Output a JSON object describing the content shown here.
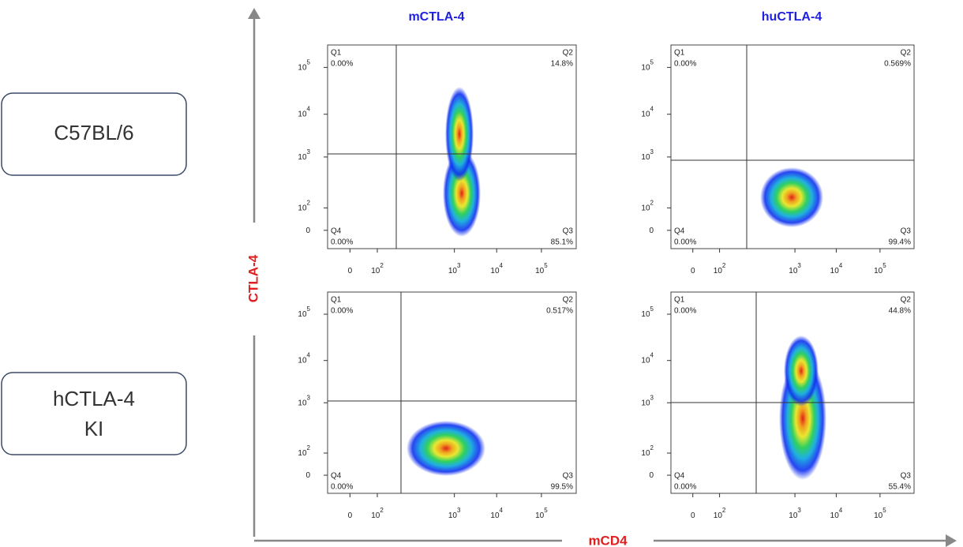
{
  "column_titles": [
    "mCTLA-4",
    "huCTLA-4"
  ],
  "row_labels": [
    [
      "C57BL/6"
    ],
    [
      "hCTLA-4",
      "KI"
    ]
  ],
  "y_axis_label": "CTLA-4",
  "x_axis_label": "mCD4",
  "ticks": [
    {
      "label": "0"
    },
    {
      "label": "10",
      "sup": "2"
    },
    {
      "label": "10",
      "sup": "3"
    },
    {
      "label": "10",
      "sup": "4"
    },
    {
      "label": "10",
      "sup": "5"
    }
  ],
  "panels": [
    {
      "quadrants": [
        {
          "name": "Q1",
          "value": "0.00%"
        },
        {
          "name": "Q2",
          "value": "14.8%"
        },
        {
          "name": "Q3",
          "value": "85.1%"
        },
        {
          "name": "Q4",
          "value": "0.00%"
        }
      ]
    },
    {
      "quadrants": [
        {
          "name": "Q1",
          "value": "0.00%"
        },
        {
          "name": "Q2",
          "value": "0.569%"
        },
        {
          "name": "Q3",
          "value": "99.4%"
        },
        {
          "name": "Q4",
          "value": "0.00%"
        }
      ]
    },
    {
      "quadrants": [
        {
          "name": "Q1",
          "value": "0.00%"
        },
        {
          "name": "Q2",
          "value": "0.517%"
        },
        {
          "name": "Q3",
          "value": "99.5%"
        },
        {
          "name": "Q4",
          "value": "0.00%"
        }
      ]
    },
    {
      "quadrants": [
        {
          "name": "Q1",
          "value": "0.00%"
        },
        {
          "name": "Q2",
          "value": "44.8%"
        },
        {
          "name": "Q3",
          "value": "55.4%"
        },
        {
          "name": "Q4",
          "value": "0.00%"
        }
      ]
    }
  ]
}
